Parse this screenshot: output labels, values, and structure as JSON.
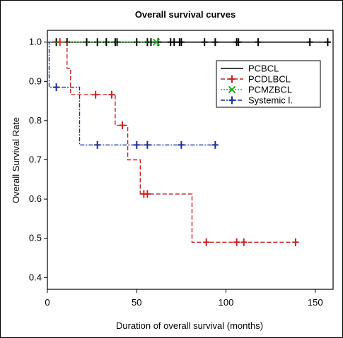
{
  "chart_data": {
    "type": "line",
    "title": "Overall survival curves",
    "xlabel": "Duration of overall survival (months)",
    "ylabel": "Overall Survival Rate",
    "xlim": [
      0,
      160
    ],
    "ylim": [
      0.37,
      1.03
    ],
    "xticks": [
      0,
      50,
      100,
      150
    ],
    "yticks": [
      0.4,
      0.5,
      0.6,
      0.7,
      0.8,
      0.9,
      1.0
    ],
    "xtick_labels": [
      "0",
      "50",
      "100",
      "150"
    ],
    "ytick_labels": [
      "0.4",
      "0.5",
      "0.6",
      "0.7",
      "0.8",
      "0.9",
      "1.0"
    ],
    "grid": false,
    "legend_position": "top-right",
    "series": [
      {
        "name": "PCBCL",
        "color": "#000000",
        "line_style": "solid",
        "marker": "plus",
        "steps": [
          [
            0,
            1.0
          ],
          [
            158,
            1.0
          ]
        ],
        "censored": [
          [
            5,
            1.0
          ],
          [
            11,
            1.0
          ],
          [
            22,
            1.0
          ],
          [
            28,
            1.0
          ],
          [
            33,
            1.0
          ],
          [
            38,
            1.0
          ],
          [
            39,
            1.0
          ],
          [
            50,
            1.0
          ],
          [
            56,
            1.0
          ],
          [
            58,
            1.0
          ],
          [
            62,
            1.0
          ],
          [
            69,
            1.0
          ],
          [
            71,
            1.0
          ],
          [
            74,
            1.0
          ],
          [
            75,
            1.0
          ],
          [
            88,
            1.0
          ],
          [
            94,
            1.0
          ],
          [
            106,
            1.0
          ],
          [
            107,
            1.0
          ],
          [
            118,
            1.0
          ],
          [
            147,
            1.0
          ],
          [
            157,
            1.0
          ]
        ]
      },
      {
        "name": "PCDLBCL",
        "color": "#cc2222",
        "line_style": "dashed",
        "marker": "plus",
        "steps": [
          [
            0,
            1.0
          ],
          [
            11,
            1.0
          ],
          [
            11,
            0.933
          ],
          [
            13,
            0.933
          ],
          [
            13,
            0.866
          ],
          [
            38,
            0.866
          ],
          [
            38,
            0.788
          ],
          [
            45,
            0.788
          ],
          [
            45,
            0.7
          ],
          [
            52,
            0.7
          ],
          [
            52,
            0.613
          ],
          [
            81,
            0.613
          ],
          [
            81,
            0.49
          ],
          [
            139,
            0.49
          ]
        ],
        "censored": [
          [
            7,
            1.0
          ],
          [
            27,
            0.866
          ],
          [
            36,
            0.866
          ],
          [
            42,
            0.788
          ],
          [
            54,
            0.613
          ],
          [
            56,
            0.613
          ],
          [
            89,
            0.49
          ],
          [
            106,
            0.49
          ],
          [
            110,
            0.49
          ],
          [
            139,
            0.49
          ]
        ]
      },
      {
        "name": "PCMZBCL",
        "color": "#22aa22",
        "line_style": "dotted",
        "marker": "x",
        "steps": [
          [
            0,
            1.0
          ],
          [
            61,
            1.0
          ]
        ],
        "censored": [
          [
            61,
            1.0
          ]
        ]
      },
      {
        "name": "Systemic l.",
        "color": "#1a2f9c",
        "line_style": "dashdot",
        "marker": "plus",
        "steps": [
          [
            0,
            1.0
          ],
          [
            1,
            1.0
          ],
          [
            1,
            0.885
          ],
          [
            18,
            0.885
          ],
          [
            18,
            0.738
          ],
          [
            94,
            0.738
          ]
        ],
        "censored": [
          [
            5,
            0.885
          ],
          [
            28,
            0.738
          ],
          [
            50,
            0.738
          ],
          [
            56,
            0.738
          ],
          [
            75,
            0.738
          ],
          [
            94,
            0.738
          ]
        ]
      }
    ]
  }
}
